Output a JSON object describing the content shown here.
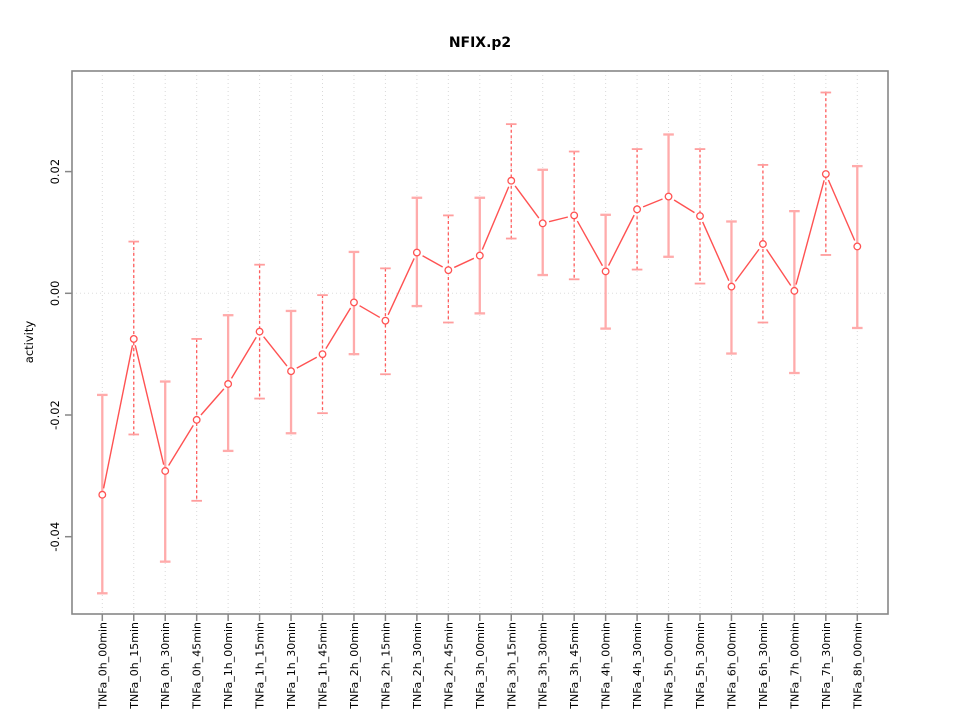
{
  "title": "NFIX.p2",
  "chart_data": {
    "type": "line",
    "title": "NFIX.p2",
    "xlabel": "",
    "ylabel": "activity",
    "legend_position": "none",
    "grid": {
      "vertical": "dotted-per-category",
      "horizontal_reference": 0
    },
    "marker": "open-circle",
    "line_style": "segments-with-point-gaps",
    "ylim": [
      -0.0527,
      0.0365
    ],
    "yticks": {
      "values": [
        0.02,
        0.0,
        -0.02,
        -0.04
      ],
      "labels": [
        "0.02",
        "0.00",
        "-0.02",
        "-0.04"
      ]
    },
    "categories": [
      "TNFa_0h_00min",
      "TNFa_0h_15min",
      "TNFa_0h_30min",
      "TNFa_0h_45min",
      "TNFa_1h_00min",
      "TNFa_1h_15min",
      "TNFa_1h_30min",
      "TNFa_1h_45min",
      "TNFa_2h_00min",
      "TNFa_2h_15min",
      "TNFa_2h_30min",
      "TNFa_2h_45min",
      "TNFa_3h_00min",
      "TNFa_3h_15min",
      "TNFa_3h_30min",
      "TNFa_3h_45min",
      "TNFa_4h_00min",
      "TNFa_4h_30min",
      "TNFa_5h_00min",
      "TNFa_5h_30min",
      "TNFa_6h_00min",
      "TNFa_6h_30min",
      "TNFa_7h_00min",
      "TNFa_7h_30min",
      "TNFa_8h_00min"
    ],
    "series": [
      {
        "name": "activity",
        "values": [
          -0.0331,
          -0.0075,
          -0.0292,
          -0.0208,
          -0.0149,
          -0.0063,
          -0.0128,
          -0.01,
          -0.0015,
          -0.0045,
          0.0067,
          0.0038,
          0.0062,
          0.0185,
          0.0115,
          0.0128,
          0.0036,
          0.0138,
          0.0159,
          0.0127,
          0.0011,
          0.0081,
          0.0004,
          0.0196,
          0.0077
        ],
        "upper": [
          -0.0167,
          0.0085,
          -0.0145,
          -0.0075,
          -0.0036,
          0.0047,
          -0.0029,
          -0.0003,
          0.0068,
          0.0041,
          0.0157,
          0.0128,
          0.0157,
          0.0278,
          0.0203,
          0.0233,
          0.0129,
          0.0237,
          0.0261,
          0.0237,
          0.0118,
          0.0211,
          0.0135,
          0.033,
          0.0209
        ],
        "lower": [
          -0.0493,
          -0.0232,
          -0.0441,
          -0.0341,
          -0.0259,
          -0.0173,
          -0.023,
          -0.0197,
          -0.01,
          -0.0133,
          -0.0021,
          -0.0048,
          -0.0033,
          0.009,
          0.003,
          0.0023,
          -0.0058,
          0.0039,
          0.006,
          0.0016,
          -0.0099,
          -0.0048,
          -0.0131,
          0.0063,
          -0.0057
        ],
        "error_bar_styles": [
          "solid",
          "dashed",
          "solid",
          "dashed",
          "solid",
          "dashed",
          "solid",
          "dashed",
          "solid",
          "dashed",
          "solid",
          "dashed",
          "solid",
          "dashed",
          "solid",
          "dashed",
          "solid",
          "dashed",
          "solid",
          "dashed",
          "solid",
          "dashed",
          "solid",
          "dashed",
          "solid"
        ]
      }
    ]
  },
  "colors": {
    "line": "#ff5252",
    "marker_stroke": "#ff5252",
    "marker_fill": "#ffffff",
    "solid_error_bar": "#ffabab",
    "dashed_error_bar": "#ff5c5c",
    "dashed_error_cap": "#ff9d9d",
    "gridline": "#d9d9d9",
    "zero_line": "#dedede",
    "axis": "#878787",
    "text": "#000000",
    "background": "#ffffff"
  }
}
